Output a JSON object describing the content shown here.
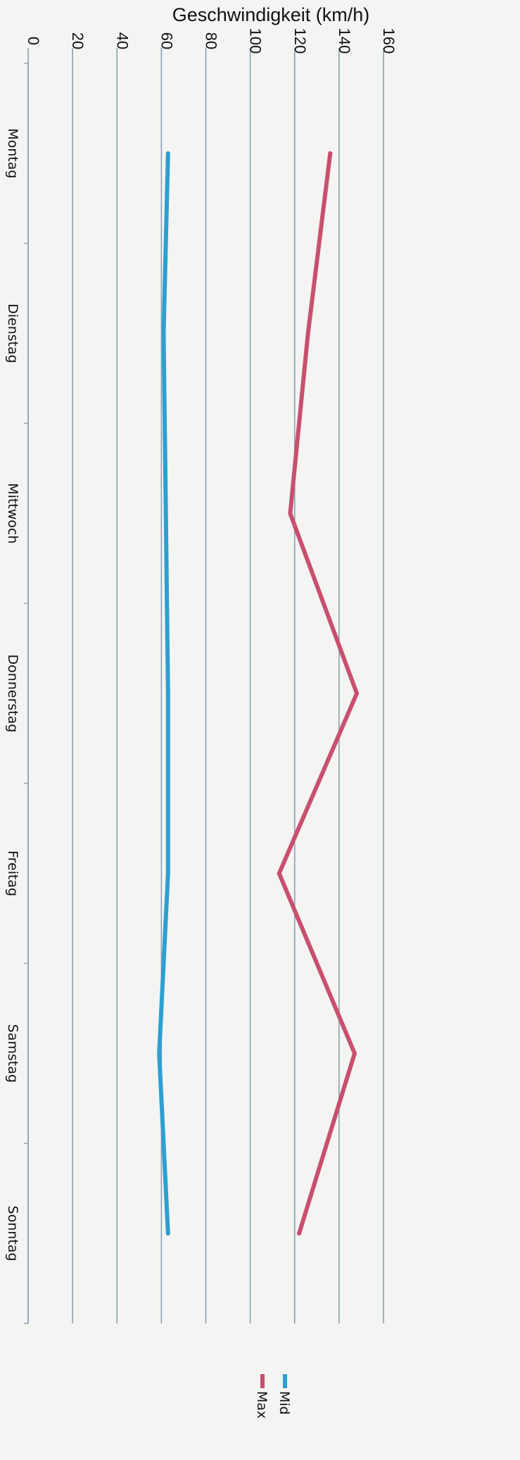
{
  "chart_data": {
    "type": "line",
    "title": "",
    "ylabel": "Geschwindigkeit (km/h)",
    "xlabel": "",
    "ylim": [
      0,
      160
    ],
    "yticks": [
      0,
      20,
      40,
      60,
      80,
      100,
      120,
      140,
      160
    ],
    "categories": [
      "Montag",
      "Dienstag",
      "Mittwoch",
      "Donnerstag",
      "Freitag",
      "Samstag",
      "Sonntag"
    ],
    "series": [
      {
        "name": "Mid",
        "color": "#2e9fd1",
        "values": [
          63,
          61,
          62,
          63,
          63,
          59,
          63
        ]
      },
      {
        "name": "Max",
        "color": "#c8506f",
        "values": [
          136,
          126,
          118,
          148,
          113,
          147,
          122
        ]
      }
    ],
    "grid": true,
    "legend_position": "bottom",
    "orientation": "rotated 90° clockwise (value axis along top, categories running down the page)"
  }
}
